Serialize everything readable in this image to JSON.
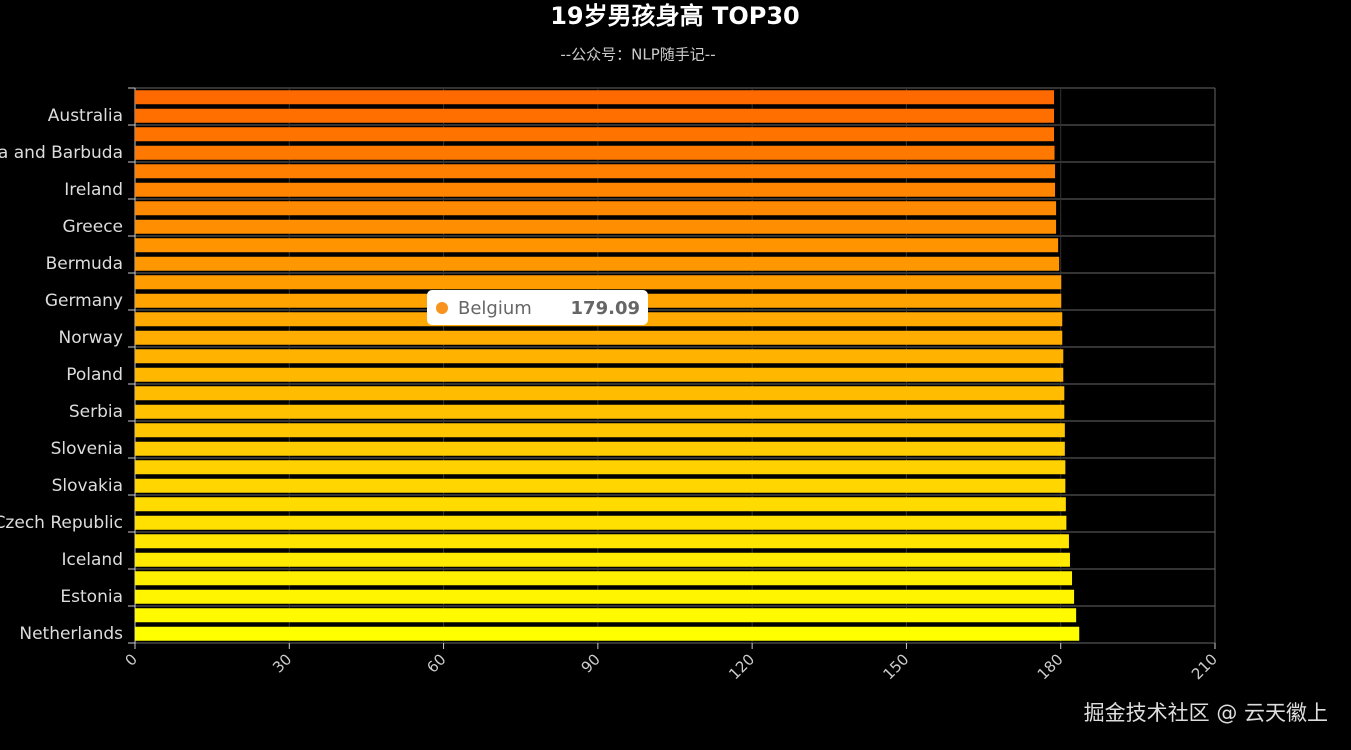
{
  "chart_data": {
    "type": "hbar",
    "title": "19岁男孩身高 TOP30",
    "subtitle": "--公众号：NLP随手记--",
    "categories": [
      "Netherlands",
      null,
      "Estonia",
      null,
      "Iceland",
      null,
      "Czech Republic",
      null,
      "Slovakia",
      null,
      "Slovenia",
      null,
      "Serbia",
      null,
      "Poland",
      null,
      "Norway",
      null,
      "Germany",
      null,
      "Bermuda",
      null,
      "Greece",
      null,
      "Ireland",
      null,
      "Antigua and Barbuda",
      null,
      "Australia",
      null
    ],
    "values": [
      183.6,
      183.0,
      182.6,
      182.2,
      181.8,
      181.6,
      181.1,
      181.0,
      180.9,
      180.9,
      180.8,
      180.8,
      180.7,
      180.7,
      180.5,
      180.5,
      180.3,
      180.3,
      180.1,
      180.1,
      179.7,
      179.5,
      179.1,
      179.1,
      178.9,
      178.9,
      178.8,
      178.7,
      178.7,
      178.7
    ],
    "color_bottom": "#ffff00",
    "color_top": "#ff6a00",
    "xlim": [
      0,
      210
    ],
    "xticks": [
      0,
      30,
      60,
      90,
      120,
      150,
      180,
      210
    ],
    "grid": true,
    "tooltip": {
      "name": "Belgium",
      "value": 179.09,
      "color": "#f7931e"
    },
    "watermark": "掘金技术社区 @ 云天徽上"
  }
}
